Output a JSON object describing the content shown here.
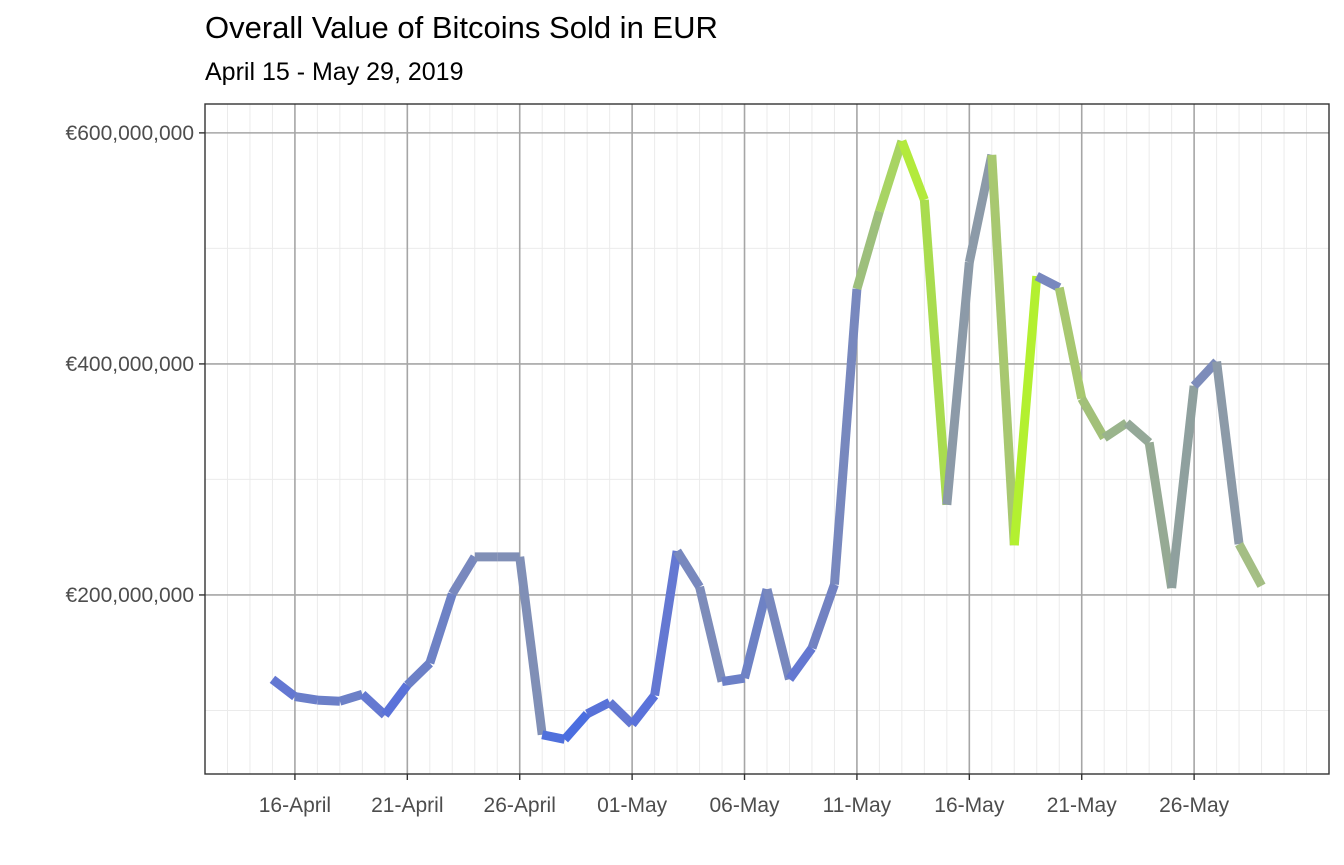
{
  "chart_data": {
    "type": "line",
    "title": "Overall Value of Bitcoins Sold in EUR",
    "subtitle": "April 15 - May 29, 2019",
    "xlabel": "",
    "ylabel": "",
    "x_range": [
      "2019-04-12",
      "2019-06-01"
    ],
    "ylim": [
      45000000,
      625000000
    ],
    "y_ticks": [
      200000000,
      400000000,
      600000000
    ],
    "y_tick_labels": [
      "€200,000,000",
      "€400,000,000",
      "€600,000,000"
    ],
    "x_ticks": [
      "2019-04-16",
      "2019-04-21",
      "2019-04-26",
      "2019-05-01",
      "2019-05-06",
      "2019-05-11",
      "2019-05-16",
      "2019-05-21",
      "2019-05-26"
    ],
    "x_tick_labels": [
      "16-April",
      "21-April",
      "26-April",
      "01-May",
      "06-May",
      "11-May",
      "16-May",
      "21-May",
      "26-May"
    ],
    "grid": true,
    "color_scale": {
      "low": "#4169e1",
      "mid": "#8c9aa8",
      "high": "#b3ff1a"
    },
    "series": [
      {
        "x": [
          "2019-04-15",
          "2019-04-16",
          "2019-04-17",
          "2019-04-18",
          "2019-04-19",
          "2019-04-20",
          "2019-04-21",
          "2019-04-22",
          "2019-04-23",
          "2019-04-24",
          "2019-04-25",
          "2019-04-26",
          "2019-04-27",
          "2019-04-28",
          "2019-04-29",
          "2019-04-30",
          "2019-05-01",
          "2019-05-02",
          "2019-05-03",
          "2019-05-04",
          "2019-05-05",
          "2019-05-06",
          "2019-05-07",
          "2019-05-08",
          "2019-05-09",
          "2019-05-10",
          "2019-05-11",
          "2019-05-12",
          "2019-05-13",
          "2019-05-14",
          "2019-05-15",
          "2019-05-16",
          "2019-05-17",
          "2019-05-18",
          "2019-05-19",
          "2019-05-20",
          "2019-05-21",
          "2019-05-22",
          "2019-05-23",
          "2019-05-24",
          "2019-05-25",
          "2019-05-26",
          "2019-05-27",
          "2019-05-28",
          "2019-05-29"
        ],
        "values": [
          127000000,
          112000000,
          109000000,
          108000000,
          114000000,
          96000000,
          122000000,
          141000000,
          201000000,
          233000000,
          233000000,
          233000000,
          79000000,
          75000000,
          97000000,
          107000000,
          88000000,
          113000000,
          238000000,
          207000000,
          125000000,
          128000000,
          205000000,
          127000000,
          154000000,
          209000000,
          465000000,
          532000000,
          593000000,
          542000000,
          278000000,
          488000000,
          581000000,
          243000000,
          476000000,
          466000000,
          370000000,
          336000000,
          349000000,
          332000000,
          206000000,
          381000000,
          402000000,
          244000000,
          208000000
        ],
        "colors": [
          "#6377d2",
          "#6a7ec9",
          "#6b7fc8",
          "#6c80c7",
          "#6478d1",
          "#5a72d9",
          "#6c80c7",
          "#6e82c5",
          "#7888be",
          "#808fb6",
          "#808fb6",
          "#808fb6",
          "#5070dc",
          "#4b6ee0",
          "#5872d8",
          "#6478d2",
          "#5a72da",
          "#6478d2",
          "#7888be",
          "#7d8cba",
          "#6c80c7",
          "#6e82c5",
          "#7888be",
          "#6478d1",
          "#7282c2",
          "#7888be",
          "#9dbf7c",
          "#a8d463",
          "#b3ea3c",
          "#a9dc4f",
          "#8c9aa8",
          "#8c9aa8",
          "#a8c870",
          "#b3f030",
          "#7888be",
          "#a8c870",
          "#a2c079",
          "#9ab48c",
          "#94a898",
          "#96aa94",
          "#8fa09e",
          "#7d8cba",
          "#8c9aa8",
          "#a4be84",
          "#8a96b0"
        ]
      }
    ]
  }
}
